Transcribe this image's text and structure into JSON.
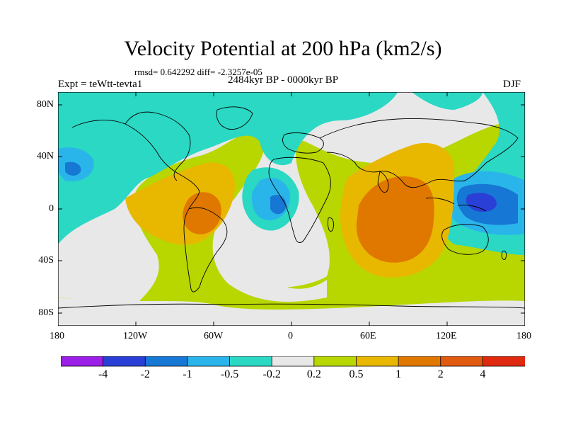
{
  "title": "Velocity Potential at 200 hPa (km2/s)",
  "stats": "rmsd= 0.642292 diff= -2.3257e-05",
  "experiment": "Expt = teWtt-tevta1",
  "period": "2484kyr BP - 0000kyr BP",
  "season": "DJF",
  "lat_labels": [
    "80N",
    "40N",
    "0",
    "40S",
    "80S"
  ],
  "lon_labels": [
    "180",
    "120W",
    "60W",
    "0",
    "60E",
    "120E",
    "180"
  ],
  "colorbar": {
    "colors": [
      "#9b1fe6",
      "#2a3fd6",
      "#1777d4",
      "#2ab5ea",
      "#2ad8c4",
      "#e8e8e8",
      "#b8d600",
      "#e8b800",
      "#e07800",
      "#e05a10",
      "#e02a10"
    ],
    "labels": [
      "-4",
      "-2",
      "-1",
      "-0.5",
      "-0.2",
      "0.2",
      "0.5",
      "1",
      "2",
      "4"
    ]
  }
}
